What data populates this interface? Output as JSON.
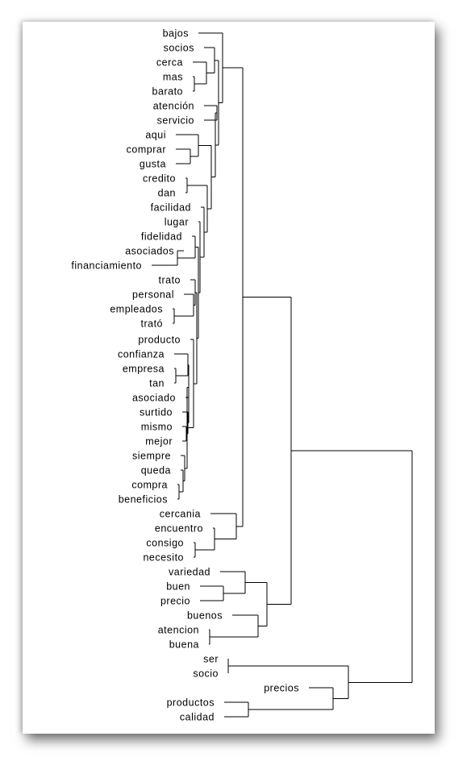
{
  "dendrogram": {
    "labels": [
      "bajos",
      "socios",
      "cerca",
      "mas",
      "barato",
      "atención",
      "servicio",
      "aqui",
      "comprar",
      "gusta",
      "credito",
      "dan",
      "facilidad",
      "lugar",
      "fidelidad",
      "asociados",
      "financiamiento",
      "trato",
      "personal",
      "empleados",
      "trató",
      "producto",
      "confianza",
      "empresa",
      "tan",
      "asociado",
      "surtido",
      "mismo",
      "mejor",
      "siempre",
      "queda",
      "compra",
      "beneficios",
      "cercania",
      "encuentro",
      "consigo",
      "necesito",
      "variedad",
      "buen",
      "precio",
      "buenos",
      "atencion",
      "buena",
      "ser",
      "socio",
      "precios",
      "productos",
      "calidad"
    ]
  }
}
